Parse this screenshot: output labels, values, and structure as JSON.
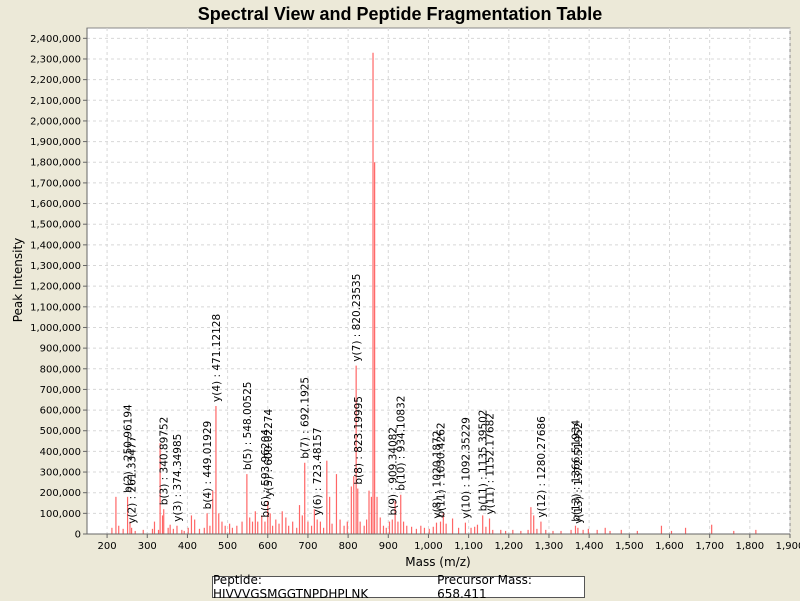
{
  "chart_data": {
    "type": "bar",
    "title": "Spectral View and Peptide Fragmentation Table",
    "xlabel": "Mass (m/z)",
    "ylabel": "Peak Intensity",
    "xlim": [
      150,
      1900
    ],
    "ylim": [
      0,
      2450000
    ],
    "x_ticks": [
      200,
      300,
      400,
      500,
      600,
      700,
      800,
      900,
      1000,
      1100,
      1200,
      1300,
      1400,
      1500,
      1600,
      1700,
      1800,
      1900
    ],
    "x_tick_labels": [
      "200",
      "300",
      "400",
      "500",
      "600",
      "700",
      "800",
      "900",
      "1,000",
      "1,100",
      "1,200",
      "1,300",
      "1,400",
      "1,500",
      "1,600",
      "1,700",
      "1,800",
      "1,900"
    ],
    "y_ticks": [
      0,
      100000,
      200000,
      300000,
      400000,
      500000,
      600000,
      700000,
      800000,
      900000,
      1000000,
      1100000,
      1200000,
      1300000,
      1400000,
      1500000,
      1600000,
      1700000,
      1800000,
      1900000,
      2000000,
      2100000,
      2200000,
      2300000,
      2400000
    ],
    "y_tick_labels": [
      "0",
      "100,000",
      "200,000",
      "300,000",
      "400,000",
      "500,000",
      "600,000",
      "700,000",
      "800,000",
      "900,000",
      "1,000,000",
      "1,100,000",
      "1,200,000",
      "1,300,000",
      "1,400,000",
      "1,500,000",
      "1,600,000",
      "1,700,000",
      "1,800,000",
      "1,900,000",
      "2,000,000",
      "2,100,000",
      "2,200,000",
      "2,300,000",
      "2,400,000"
    ],
    "grid": true,
    "series": [
      {
        "name": "spectrum peaks",
        "color": "#ff6666",
        "peaks": [
          [
            212,
            30000
          ],
          [
            222,
            180000
          ],
          [
            229,
            40000
          ],
          [
            240,
            25000
          ],
          [
            251,
            180000
          ],
          [
            257,
            60000
          ],
          [
            261,
            30000
          ],
          [
            270,
            15000
          ],
          [
            290,
            20000
          ],
          [
            313,
            25000
          ],
          [
            318,
            60000
          ],
          [
            328,
            20000
          ],
          [
            332,
            440000
          ],
          [
            338,
            90000
          ],
          [
            341,
            120000
          ],
          [
            352,
            30000
          ],
          [
            357,
            45000
          ],
          [
            365,
            25000
          ],
          [
            374,
            40000
          ],
          [
            386,
            20000
          ],
          [
            392,
            15000
          ],
          [
            402,
            30000
          ],
          [
            410,
            90000
          ],
          [
            418,
            70000
          ],
          [
            430,
            25000
          ],
          [
            442,
            30000
          ],
          [
            449,
            100000
          ],
          [
            456,
            40000
          ],
          [
            463,
            210000
          ],
          [
            471,
            620000
          ],
          [
            478,
            100000
          ],
          [
            486,
            60000
          ],
          [
            494,
            40000
          ],
          [
            505,
            50000
          ],
          [
            512,
            30000
          ],
          [
            523,
            40000
          ],
          [
            536,
            60000
          ],
          [
            548,
            290000
          ],
          [
            555,
            80000
          ],
          [
            562,
            60000
          ],
          [
            569,
            110000
          ],
          [
            575,
            60000
          ],
          [
            585,
            90000
          ],
          [
            593,
            60000
          ],
          [
            600,
            160000
          ],
          [
            606,
            100000
          ],
          [
            612,
            40000
          ],
          [
            620,
            70000
          ],
          [
            628,
            50000
          ],
          [
            636,
            110000
          ],
          [
            645,
            80000
          ],
          [
            652,
            40000
          ],
          [
            662,
            60000
          ],
          [
            672,
            30000
          ],
          [
            679,
            140000
          ],
          [
            686,
            90000
          ],
          [
            692,
            345000
          ],
          [
            700,
            60000
          ],
          [
            709,
            40000
          ],
          [
            716,
            120000
          ],
          [
            723,
            70000
          ],
          [
            731,
            60000
          ],
          [
            739,
            30000
          ],
          [
            747,
            355000
          ],
          [
            754,
            180000
          ],
          [
            760,
            50000
          ],
          [
            771,
            290000
          ],
          [
            780,
            70000
          ],
          [
            790,
            40000
          ],
          [
            798,
            60000
          ],
          [
            808,
            230000
          ],
          [
            814,
            280000
          ],
          [
            820,
            815000
          ],
          [
            824,
            220000
          ],
          [
            830,
            60000
          ],
          [
            840,
            40000
          ],
          [
            846,
            70000
          ],
          [
            852,
            210000
          ],
          [
            858,
            180000
          ],
          [
            862,
            2330000
          ],
          [
            866,
            1800000
          ],
          [
            872,
            180000
          ],
          [
            880,
            80000
          ],
          [
            888,
            40000
          ],
          [
            895,
            30000
          ],
          [
            903,
            60000
          ],
          [
            910,
            70000
          ],
          [
            917,
            160000
          ],
          [
            924,
            60000
          ],
          [
            931,
            190000
          ],
          [
            938,
            60000
          ],
          [
            946,
            40000
          ],
          [
            958,
            35000
          ],
          [
            970,
            25000
          ],
          [
            981,
            40000
          ],
          [
            990,
            30000
          ],
          [
            1002,
            25000
          ],
          [
            1012,
            35000
          ],
          [
            1020,
            55000
          ],
          [
            1030,
            60000
          ],
          [
            1037,
            100000
          ],
          [
            1044,
            50000
          ],
          [
            1060,
            75000
          ],
          [
            1075,
            30000
          ],
          [
            1092,
            55000
          ],
          [
            1106,
            30000
          ],
          [
            1115,
            35000
          ],
          [
            1122,
            45000
          ],
          [
            1135,
            90000
          ],
          [
            1143,
            35000
          ],
          [
            1152,
            75000
          ],
          [
            1160,
            20000
          ],
          [
            1180,
            20000
          ],
          [
            1192,
            15000
          ],
          [
            1210,
            20000
          ],
          [
            1230,
            15000
          ],
          [
            1248,
            20000
          ],
          [
            1255,
            130000
          ],
          [
            1262,
            90000
          ],
          [
            1270,
            25000
          ],
          [
            1280,
            60000
          ],
          [
            1292,
            20000
          ],
          [
            1310,
            15000
          ],
          [
            1330,
            15000
          ],
          [
            1355,
            20000
          ],
          [
            1366,
            40000
          ],
          [
            1372,
            30000
          ],
          [
            1385,
            20000
          ],
          [
            1398,
            25000
          ],
          [
            1420,
            20000
          ],
          [
            1440,
            30000
          ],
          [
            1452,
            15000
          ],
          [
            1480,
            20000
          ],
          [
            1520,
            15000
          ],
          [
            1580,
            40000
          ],
          [
            1605,
            15000
          ],
          [
            1640,
            30000
          ],
          [
            1705,
            45000
          ],
          [
            1760,
            15000
          ],
          [
            1815,
            20000
          ]
        ]
      }
    ],
    "annotations": [
      {
        "label": "b(2) : 250.96194",
        "x": 251,
        "y": 180000
      },
      {
        "label": "y(2) : 261.33477",
        "x": 261,
        "y": 30000
      },
      {
        "label": "b(3) : 340.89752",
        "x": 341,
        "y": 120000
      },
      {
        "label": "y(3) : 374.34985",
        "x": 374,
        "y": 40000
      },
      {
        "label": "b(4) : 449.01929",
        "x": 449,
        "y": 100000
      },
      {
        "label": "y(4) : 471.12128",
        "x": 471,
        "y": 620000
      },
      {
        "label": "b(5) : 548.00525",
        "x": 548,
        "y": 290000
      },
      {
        "label": "b(6) : 593.96204",
        "x": 593,
        "y": 60000
      },
      {
        "label": "y(5) : 600.02274",
        "x": 600,
        "y": 160000
      },
      {
        "label": "b(7) : 692.1925",
        "x": 692,
        "y": 345000
      },
      {
        "label": "y(6) : 723.48157",
        "x": 723,
        "y": 70000
      },
      {
        "label": "y(7) : 820.23535",
        "x": 820,
        "y": 815000
      },
      {
        "label": "b(8) : 823.19995",
        "x": 824,
        "y": 220000
      },
      {
        "label": "b(9) : 909.34082",
        "x": 910,
        "y": 70000
      },
      {
        "label": "b(10) : 934.10832",
        "x": 931,
        "y": 190000
      },
      {
        "label": "y(8) : 1020.1872",
        "x": 1020,
        "y": 55000
      },
      {
        "label": "b(11) : 1030.4262",
        "x": 1030,
        "y": 60000
      },
      {
        "label": "y(10) : 1092.35229",
        "x": 1092,
        "y": 55000
      },
      {
        "label": "b(11) : 1135.39502",
        "x": 1135,
        "y": 90000
      },
      {
        "label": "y(11) : 1152.17682",
        "x": 1152,
        "y": 75000
      },
      {
        "label": "y(12) : 1280.27686",
        "x": 1280,
        "y": 60000
      },
      {
        "label": "b(13) : 1366.51934",
        "x": 1366,
        "y": 40000
      },
      {
        "label": "y(13) : 1372.51952",
        "x": 1372,
        "y": 30000
      }
    ]
  },
  "legend": {
    "peptide": "Peptide: HIVVVGSMGGTNPDHPLNK",
    "precursor": "Precursor Mass: 658.411"
  }
}
